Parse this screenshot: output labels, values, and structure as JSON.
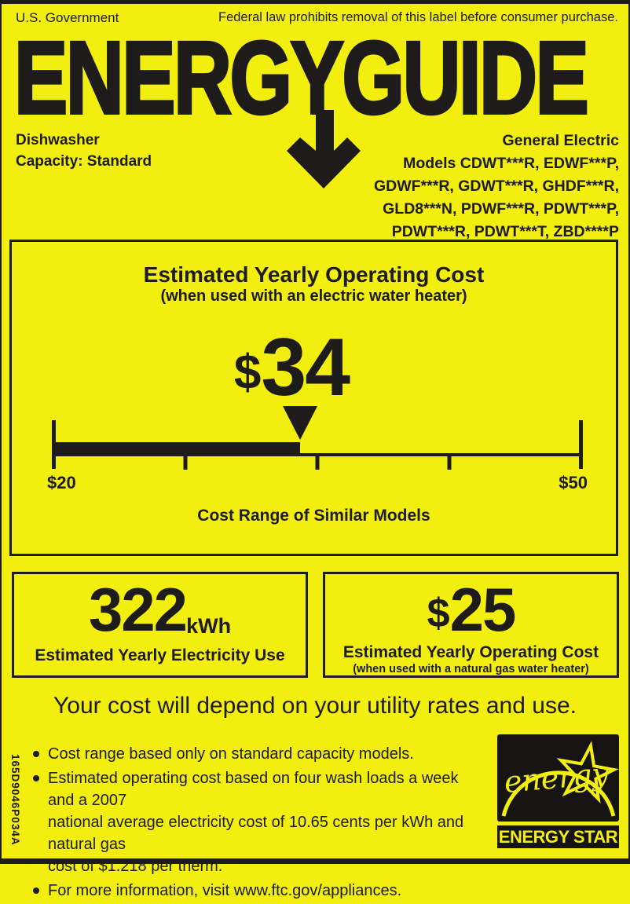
{
  "colors": {
    "label_yellow": "#f2ee0d",
    "print_black": "#1e1b1b"
  },
  "header": {
    "gov": "U.S. Government",
    "federal": "Federal law prohibits removal of this label before consumer purchase.",
    "logo_energy": "ENERGY",
    "logo_guide": "GUIDE"
  },
  "product": {
    "type": "Dishwasher",
    "capacity": "Capacity: Standard",
    "maker": "General Electric",
    "models": [
      "Models CDWT***R, EDWF***P,",
      "GDWF***R, GDWT***R, GHDF***R,",
      "GLD8***N, PDWF***R, PDWT***P,",
      "PDWT***R, PDWT***T, ZBD****P"
    ]
  },
  "main_box": {
    "title": "Estimated Yearly Operating Cost",
    "subtitle": "(when used with an electric water heater)",
    "cost_symbol": "$",
    "cost_number": "34",
    "scale": {
      "min": 20,
      "max": 50,
      "value": 34,
      "min_label": "$20",
      "max_label": "$50"
    },
    "range_caption": "Cost Range of Similar Models"
  },
  "electricity_box": {
    "value": "322",
    "unit": "kWh",
    "label": "Estimated Yearly Electricity Use"
  },
  "gas_box": {
    "symbol": "$",
    "value": "25",
    "label": "Estimated Yearly Operating Cost",
    "sublabel": "(when used with a natural gas water heater)"
  },
  "footer": {
    "sentence": "Your cost will depend on your utility rates and use.",
    "bullets": [
      "Cost range based only on standard capacity models.",
      "Estimated operating cost based on four wash loads a week and a 2007\nnational average electricity cost of 10.65 cents per kWh and natural gas\ncost of $1.218 per therm.",
      "For more information, visit www.ftc.gov/appliances."
    ],
    "part_number": "165D9046P034A",
    "energy_star": {
      "script_text": "energy",
      "wordmark": "ENERGY STAR"
    }
  }
}
